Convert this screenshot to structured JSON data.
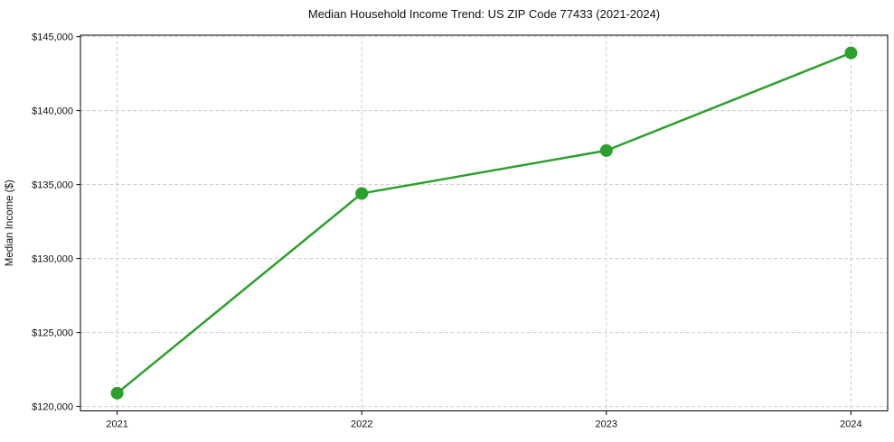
{
  "chart_data": {
    "type": "line",
    "title": "Median Household Income Trend: US ZIP Code 77433 (2021-2024)",
    "xlabel": "",
    "ylabel": "Median Income ($)",
    "x": [
      2021,
      2022,
      2023,
      2024
    ],
    "xtick_labels": [
      "2021",
      "2022",
      "2023",
      "2024"
    ],
    "series": [
      {
        "name": "Median Household Income",
        "values": [
          120900,
          134400,
          137300,
          143900
        ]
      }
    ],
    "yticks": [
      120000,
      125000,
      130000,
      135000,
      140000,
      145000
    ],
    "ytick_labels": [
      "$120,000",
      "$125,000",
      "$130,000",
      "$135,000",
      "$140,000",
      "$145,000"
    ],
    "ylim": [
      119700,
      145100
    ],
    "xlim": [
      2020.85,
      2024.15
    ],
    "grid": true,
    "grid_style": "dashed",
    "legend_position": "none",
    "line_color": "#2ca02c",
    "marker": "circle",
    "marker_color": "#2ca02c",
    "grid_color": "#cccccc",
    "axis_color": "#000000",
    "text_color": "#111111",
    "background_color": "#ffffff"
  }
}
